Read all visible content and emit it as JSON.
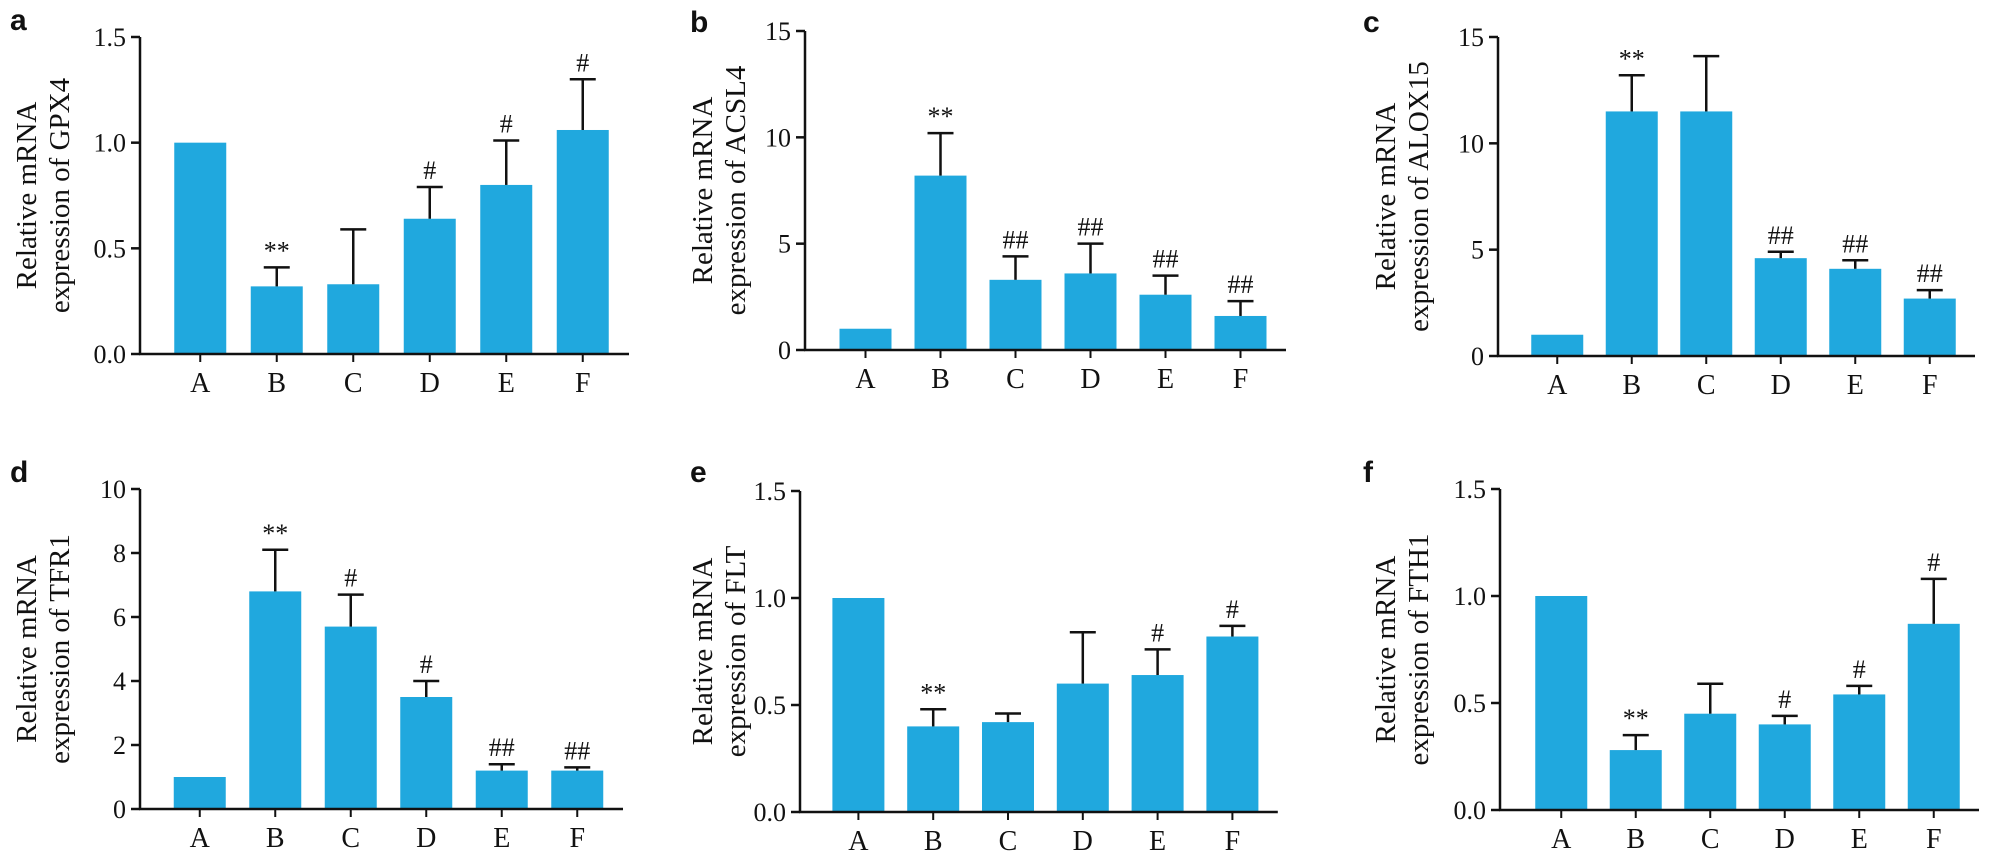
{
  "chart_data": [
    {
      "type": "bar",
      "panel": "a",
      "ylabel": [
        "Relative mRNA",
        "expression of GPX4"
      ],
      "categories": [
        "A",
        "B",
        "C",
        "D",
        "E",
        "F"
      ],
      "values": [
        1.0,
        0.32,
        0.33,
        0.64,
        0.8,
        1.06
      ],
      "errors": [
        0,
        0.09,
        0.26,
        0.15,
        0.21,
        0.24
      ],
      "annotations": [
        "",
        "**",
        "",
        "#",
        "#",
        "#"
      ],
      "ylim": [
        0,
        1.5
      ],
      "yticks": [
        "0.0",
        "0.5",
        "1.0",
        "1.5"
      ],
      "color": "#20A8DE"
    },
    {
      "type": "bar",
      "panel": "b",
      "ylabel": [
        "Relative mRNA",
        "expression of ACSL4"
      ],
      "categories": [
        "A",
        "B",
        "C",
        "D",
        "E",
        "F"
      ],
      "values": [
        1.0,
        8.2,
        3.3,
        3.6,
        2.6,
        1.6
      ],
      "errors": [
        0,
        2.0,
        1.1,
        1.4,
        0.9,
        0.7
      ],
      "annotations": [
        "",
        "**",
        "##",
        "##",
        "##",
        "##"
      ],
      "ylim": [
        0,
        15
      ],
      "yticks": [
        "0",
        "5",
        "10",
        "15"
      ],
      "color": "#20A8DE"
    },
    {
      "type": "bar",
      "panel": "c",
      "ylabel": [
        "Relative mRNA",
        "expression of ALOX15"
      ],
      "categories": [
        "A",
        "B",
        "C",
        "D",
        "E",
        "F"
      ],
      "values": [
        1.0,
        11.5,
        11.5,
        4.6,
        4.1,
        2.7
      ],
      "errors": [
        0,
        1.7,
        2.6,
        0.3,
        0.4,
        0.4
      ],
      "annotations": [
        "",
        "**",
        "",
        "##",
        "##",
        "##"
      ],
      "ylim": [
        0,
        15
      ],
      "yticks": [
        "0",
        "5",
        "10",
        "15"
      ],
      "color": "#20A8DE"
    },
    {
      "type": "bar",
      "panel": "d",
      "ylabel": [
        "Relative mRNA",
        "expression of TFR1"
      ],
      "categories": [
        "A",
        "B",
        "C",
        "D",
        "E",
        "F"
      ],
      "values": [
        1.0,
        6.8,
        5.7,
        3.5,
        1.2,
        1.2
      ],
      "errors": [
        0,
        1.3,
        1.0,
        0.5,
        0.2,
        0.1
      ],
      "annotations": [
        "",
        "**",
        "#",
        "#",
        "##",
        "##"
      ],
      "ylim": [
        0,
        10
      ],
      "yticks": [
        "0",
        "2",
        "4",
        "6",
        "8",
        "10"
      ],
      "color": "#20A8DE"
    },
    {
      "type": "bar",
      "panel": "e",
      "ylabel": [
        "Relative mRNA",
        "expression of FLT"
      ],
      "categories": [
        "A",
        "B",
        "C",
        "D",
        "E",
        "F"
      ],
      "values": [
        1.0,
        0.4,
        0.42,
        0.6,
        0.64,
        0.82
      ],
      "errors": [
        0,
        0.08,
        0.04,
        0.24,
        0.12,
        0.05
      ],
      "annotations": [
        "",
        "**",
        "",
        "",
        "#",
        "#"
      ],
      "ylim": [
        0,
        1.5
      ],
      "yticks": [
        "0.0",
        "0.5",
        "1.0",
        "1.5"
      ],
      "color": "#20A8DE"
    },
    {
      "type": "bar",
      "panel": "f",
      "ylabel": [
        "Relative mRNA",
        "expression of FTH1"
      ],
      "categories": [
        "A",
        "B",
        "C",
        "D",
        "E",
        "F"
      ],
      "values": [
        1.0,
        0.28,
        0.45,
        0.4,
        0.54,
        0.87
      ],
      "errors": [
        0,
        0.07,
        0.14,
        0.04,
        0.04,
        0.21
      ],
      "annotations": [
        "",
        "**",
        "",
        "#",
        "#",
        "#"
      ],
      "ylim": [
        0,
        1.5
      ],
      "yticks": [
        "0.0",
        "0.5",
        "1.0",
        "1.5"
      ],
      "color": "#20A8DE"
    }
  ]
}
